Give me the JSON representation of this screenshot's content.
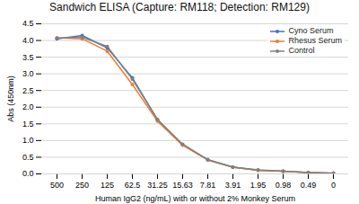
{
  "chart_data": {
    "type": "line",
    "title": "Sandwich ELISA (Capture: RM118; Detection: RM129)",
    "xlabel": "Human IgG2 (ng/mL) with or without 2% Monkey Serum",
    "ylabel": "Abs (450nm)",
    "categories": [
      "500",
      "250",
      "125",
      "62.5",
      "31.25",
      "15.63",
      "7.81",
      "3.91",
      "1.95",
      "0.98",
      "0.49",
      "0"
    ],
    "series": [
      {
        "name": "Cyno Serum",
        "color": "#4472C4",
        "marker": "circle",
        "values": [
          4.05,
          4.15,
          3.78,
          2.88,
          1.62,
          0.87,
          0.42,
          0.2,
          0.11,
          0.08,
          0.04,
          0.02
        ]
      },
      {
        "name": "Rhesus Serum",
        "color": "#ED7D31",
        "marker": "circle",
        "values": [
          4.08,
          4.05,
          3.68,
          2.68,
          1.58,
          0.86,
          0.42,
          0.2,
          0.11,
          0.08,
          0.04,
          0.02
        ]
      },
      {
        "name": "Control",
        "color": "#808080",
        "marker": "circle",
        "values": [
          4.07,
          4.1,
          3.82,
          2.84,
          1.63,
          0.89,
          0.43,
          0.2,
          0.12,
          0.08,
          0.04,
          0.02
        ]
      }
    ],
    "ylim": [
      0.0,
      4.5
    ],
    "yticks": [
      {
        "value": 0.0,
        "label": "0.0"
      },
      0.5,
      {
        "value": 1.0,
        "label": "1.0"
      },
      1.5,
      {
        "value": 2.0,
        "label": "2.0"
      },
      2.5,
      {
        "value": 3.0,
        "label": "3.0"
      },
      3.5,
      {
        "value": 4.0,
        "label": "4.0"
      },
      4.5
    ],
    "grid": true,
    "legend": "upper right"
  }
}
